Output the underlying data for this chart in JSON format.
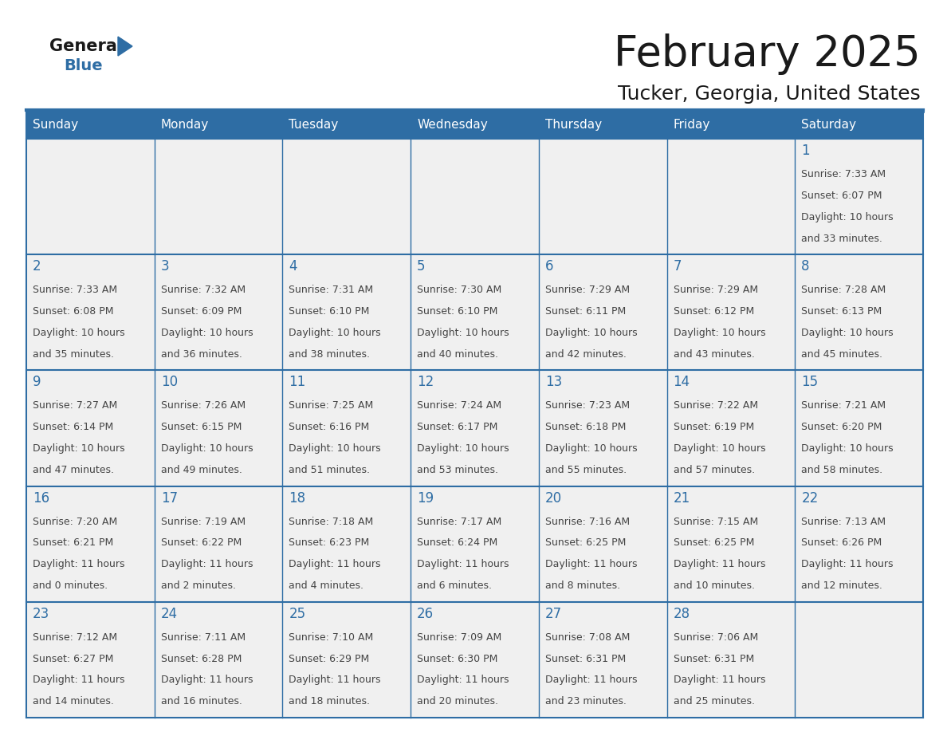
{
  "title": "February 2025",
  "subtitle": "Tucker, Georgia, United States",
  "header_bg_color": "#2E6DA4",
  "header_text_color": "#FFFFFF",
  "cell_bg_color": "#F0F0F0",
  "border_color": "#2E6DA4",
  "day_number_color": "#2E6DA4",
  "cell_text_color": "#444444",
  "days_of_week": [
    "Sunday",
    "Monday",
    "Tuesday",
    "Wednesday",
    "Thursday",
    "Friday",
    "Saturday"
  ],
  "calendar_data": [
    [
      null,
      null,
      null,
      null,
      null,
      null,
      {
        "day": 1,
        "sunrise": "7:33 AM",
        "sunset": "6:07 PM",
        "daylight": "10 hours\nand 33 minutes."
      }
    ],
    [
      {
        "day": 2,
        "sunrise": "7:33 AM",
        "sunset": "6:08 PM",
        "daylight": "10 hours\nand 35 minutes."
      },
      {
        "day": 3,
        "sunrise": "7:32 AM",
        "sunset": "6:09 PM",
        "daylight": "10 hours\nand 36 minutes."
      },
      {
        "day": 4,
        "sunrise": "7:31 AM",
        "sunset": "6:10 PM",
        "daylight": "10 hours\nand 38 minutes."
      },
      {
        "day": 5,
        "sunrise": "7:30 AM",
        "sunset": "6:10 PM",
        "daylight": "10 hours\nand 40 minutes."
      },
      {
        "day": 6,
        "sunrise": "7:29 AM",
        "sunset": "6:11 PM",
        "daylight": "10 hours\nand 42 minutes."
      },
      {
        "day": 7,
        "sunrise": "7:29 AM",
        "sunset": "6:12 PM",
        "daylight": "10 hours\nand 43 minutes."
      },
      {
        "day": 8,
        "sunrise": "7:28 AM",
        "sunset": "6:13 PM",
        "daylight": "10 hours\nand 45 minutes."
      }
    ],
    [
      {
        "day": 9,
        "sunrise": "7:27 AM",
        "sunset": "6:14 PM",
        "daylight": "10 hours\nand 47 minutes."
      },
      {
        "day": 10,
        "sunrise": "7:26 AM",
        "sunset": "6:15 PM",
        "daylight": "10 hours\nand 49 minutes."
      },
      {
        "day": 11,
        "sunrise": "7:25 AM",
        "sunset": "6:16 PM",
        "daylight": "10 hours\nand 51 minutes."
      },
      {
        "day": 12,
        "sunrise": "7:24 AM",
        "sunset": "6:17 PM",
        "daylight": "10 hours\nand 53 minutes."
      },
      {
        "day": 13,
        "sunrise": "7:23 AM",
        "sunset": "6:18 PM",
        "daylight": "10 hours\nand 55 minutes."
      },
      {
        "day": 14,
        "sunrise": "7:22 AM",
        "sunset": "6:19 PM",
        "daylight": "10 hours\nand 57 minutes."
      },
      {
        "day": 15,
        "sunrise": "7:21 AM",
        "sunset": "6:20 PM",
        "daylight": "10 hours\nand 58 minutes."
      }
    ],
    [
      {
        "day": 16,
        "sunrise": "7:20 AM",
        "sunset": "6:21 PM",
        "daylight": "11 hours\nand 0 minutes."
      },
      {
        "day": 17,
        "sunrise": "7:19 AM",
        "sunset": "6:22 PM",
        "daylight": "11 hours\nand 2 minutes."
      },
      {
        "day": 18,
        "sunrise": "7:18 AM",
        "sunset": "6:23 PM",
        "daylight": "11 hours\nand 4 minutes."
      },
      {
        "day": 19,
        "sunrise": "7:17 AM",
        "sunset": "6:24 PM",
        "daylight": "11 hours\nand 6 minutes."
      },
      {
        "day": 20,
        "sunrise": "7:16 AM",
        "sunset": "6:25 PM",
        "daylight": "11 hours\nand 8 minutes."
      },
      {
        "day": 21,
        "sunrise": "7:15 AM",
        "sunset": "6:25 PM",
        "daylight": "11 hours\nand 10 minutes."
      },
      {
        "day": 22,
        "sunrise": "7:13 AM",
        "sunset": "6:26 PM",
        "daylight": "11 hours\nand 12 minutes."
      }
    ],
    [
      {
        "day": 23,
        "sunrise": "7:12 AM",
        "sunset": "6:27 PM",
        "daylight": "11 hours\nand 14 minutes."
      },
      {
        "day": 24,
        "sunrise": "7:11 AM",
        "sunset": "6:28 PM",
        "daylight": "11 hours\nand 16 minutes."
      },
      {
        "day": 25,
        "sunrise": "7:10 AM",
        "sunset": "6:29 PM",
        "daylight": "11 hours\nand 18 minutes."
      },
      {
        "day": 26,
        "sunrise": "7:09 AM",
        "sunset": "6:30 PM",
        "daylight": "11 hours\nand 20 minutes."
      },
      {
        "day": 27,
        "sunrise": "7:08 AM",
        "sunset": "6:31 PM",
        "daylight": "11 hours\nand 23 minutes."
      },
      {
        "day": 28,
        "sunrise": "7:06 AM",
        "sunset": "6:31 PM",
        "daylight": "11 hours\nand 25 minutes."
      },
      null
    ]
  ]
}
